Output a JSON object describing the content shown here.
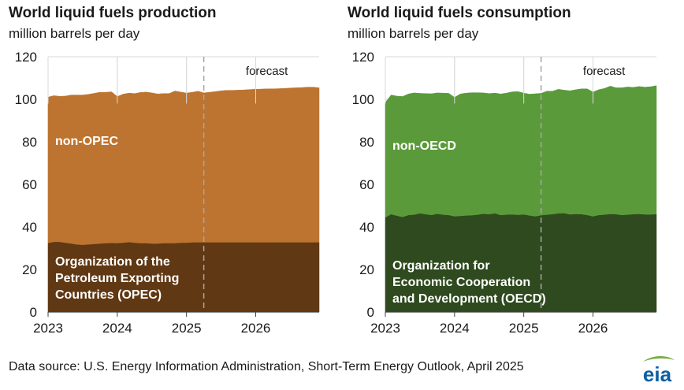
{
  "source_note": "Data source: U.S. Energy Information Administration, Short-Term Energy Outlook, April 2025",
  "logo_text": "eia",
  "colors": {
    "opec": "#603813",
    "non_opec": "#bd7430",
    "oecd": "#2e4a1e",
    "non_oecd": "#5b9a3a",
    "gridline": "#d9d9d9",
    "forecast_line": "#a6a6a6",
    "logo_blue": "#0b5fa5",
    "logo_green": "#76b042"
  },
  "chart_data": [
    {
      "type": "area",
      "stacked": true,
      "title": "World liquid fuels production",
      "subtitle": "million barrels per day",
      "ylim": [
        0,
        120
      ],
      "yticks": [
        "0",
        "20",
        "40",
        "60",
        "80",
        "100",
        "120"
      ],
      "xlim": [
        "2023-01",
        "2026-12"
      ],
      "xticks": [
        "2023",
        "2024",
        "2025",
        "2026"
      ],
      "grid": "vertical and horizontal",
      "forecast_start": "2025-04",
      "forecast_label": "forecast",
      "x": [
        "2023-01",
        "2023-02",
        "2023-03",
        "2023-04",
        "2023-05",
        "2023-06",
        "2023-07",
        "2023-08",
        "2023-09",
        "2023-10",
        "2023-11",
        "2023-12",
        "2024-01",
        "2024-02",
        "2024-03",
        "2024-04",
        "2024-05",
        "2024-06",
        "2024-07",
        "2024-08",
        "2024-09",
        "2024-10",
        "2024-11",
        "2024-12",
        "2025-01",
        "2025-02",
        "2025-03",
        "2025-04",
        "2025-05",
        "2025-06",
        "2025-07",
        "2025-08",
        "2025-09",
        "2025-10",
        "2025-11",
        "2025-12",
        "2026-01",
        "2026-02",
        "2026-03",
        "2026-04",
        "2026-05",
        "2026-06",
        "2026-07",
        "2026-08",
        "2026-09",
        "2026-10",
        "2026-11",
        "2026-12"
      ],
      "series": [
        {
          "name": "Organization of the Petroleum Exporting Countries (OPEC)",
          "values": [
            32.5,
            33.0,
            33.0,
            32.6,
            32.2,
            31.8,
            31.6,
            31.8,
            32.0,
            32.2,
            32.4,
            32.5,
            32.4,
            32.6,
            32.9,
            32.6,
            32.4,
            32.4,
            32.2,
            32.2,
            32.4,
            32.4,
            32.4,
            32.6,
            32.6,
            32.8,
            32.8,
            32.8,
            32.8,
            32.8,
            32.8,
            32.8,
            32.8,
            32.8,
            32.8,
            32.8,
            32.8,
            32.8,
            32.8,
            32.8,
            32.8,
            32.8,
            32.8,
            32.8,
            32.8,
            32.8,
            32.8,
            32.8
          ]
        },
        {
          "name": "non-OPEC",
          "values": [
            68.5,
            68.7,
            68.4,
            68.9,
            69.8,
            70.2,
            70.4,
            70.5,
            70.8,
            71.1,
            70.9,
            71.0,
            68.9,
            69.8,
            70.0,
            70.1,
            70.8,
            71.0,
            70.8,
            70.3,
            70.3,
            70.3,
            71.5,
            70.8,
            70.3,
            70.5,
            71.0,
            70.2,
            70.5,
            70.8,
            71.2,
            71.4,
            71.4,
            71.5,
            71.6,
            71.8,
            71.9,
            72.0,
            72.1,
            72.1,
            72.2,
            72.3,
            72.5,
            72.6,
            72.7,
            72.9,
            72.9,
            72.6
          ]
        }
      ],
      "labels": [
        "non-OPEC",
        "Organization of the",
        "Petroleum Exporting",
        "Countries (OPEC)"
      ]
    },
    {
      "type": "area",
      "stacked": true,
      "title": "World liquid fuels consumption",
      "subtitle": "million barrels per day",
      "ylim": [
        0,
        120
      ],
      "yticks": [
        "0",
        "20",
        "40",
        "60",
        "80",
        "100",
        "120"
      ],
      "xlim": [
        "2023-01",
        "2026-12"
      ],
      "xticks": [
        "2023",
        "2024",
        "2025",
        "2026"
      ],
      "grid": "vertical and horizontal",
      "forecast_start": "2025-04",
      "forecast_label": "forecast",
      "x": [
        "2023-01",
        "2023-02",
        "2023-03",
        "2023-04",
        "2023-05",
        "2023-06",
        "2023-07",
        "2023-08",
        "2023-09",
        "2023-10",
        "2023-11",
        "2023-12",
        "2024-01",
        "2024-02",
        "2024-03",
        "2024-04",
        "2024-05",
        "2024-06",
        "2024-07",
        "2024-08",
        "2024-09",
        "2024-10",
        "2024-11",
        "2024-12",
        "2025-01",
        "2025-02",
        "2025-03",
        "2025-04",
        "2025-05",
        "2025-06",
        "2025-07",
        "2025-08",
        "2025-09",
        "2025-10",
        "2025-11",
        "2025-12",
        "2026-01",
        "2026-02",
        "2026-03",
        "2026-04",
        "2026-05",
        "2026-06",
        "2026-07",
        "2026-08",
        "2026-09",
        "2026-10",
        "2026-11",
        "2026-12"
      ],
      "series": [
        {
          "name": "Organization for Economic Cooperation and Development (OECD)",
          "values": [
            44.5,
            46.0,
            45.3,
            44.7,
            45.6,
            45.8,
            46.4,
            46.0,
            45.6,
            46.2,
            45.8,
            45.6,
            45.0,
            45.2,
            45.4,
            45.5,
            45.8,
            46.2,
            46.0,
            46.4,
            45.6,
            45.8,
            45.9,
            45.7,
            45.9,
            45.4,
            45.0,
            45.5,
            45.8,
            46.0,
            46.4,
            46.5,
            45.9,
            46.1,
            46.0,
            45.6,
            45.0,
            45.6,
            45.8,
            46.1,
            46.0,
            45.6,
            45.8,
            46.0,
            46.1,
            45.9,
            45.9,
            46.0
          ]
        },
        {
          "name": "non-OECD",
          "values": [
            54.0,
            56.0,
            56.2,
            56.6,
            56.9,
            57.2,
            56.4,
            56.7,
            57.0,
            56.8,
            57.1,
            57.2,
            55.9,
            57.3,
            57.5,
            57.6,
            57.3,
            56.8,
            56.7,
            56.5,
            56.9,
            57.1,
            57.6,
            57.9,
            57.0,
            57.0,
            57.6,
            57.3,
            58.0,
            57.8,
            58.3,
            57.8,
            58.1,
            58.4,
            58.9,
            59.3,
            58.4,
            58.9,
            59.3,
            60.1,
            59.4,
            59.8,
            60.0,
            59.6,
            59.9,
            59.8,
            60.0,
            60.4
          ]
        }
      ],
      "labels": [
        "non-OECD",
        "Organization for",
        "Economic Cooperation",
        "and Development (OECD)"
      ]
    }
  ]
}
